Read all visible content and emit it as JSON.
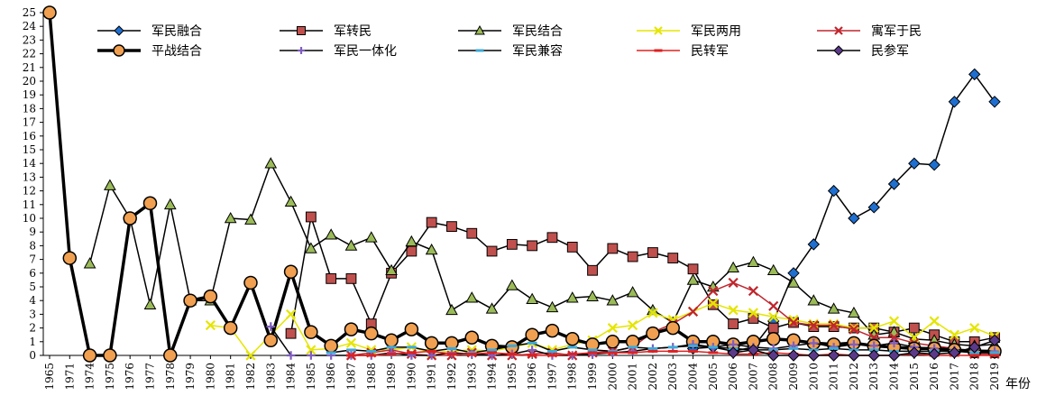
{
  "chart_data": {
    "type": "line",
    "xlabel": "年份",
    "ylabel": "",
    "ylim": [
      0,
      25
    ],
    "grid": false,
    "legend_position": "top",
    "categories": [
      "1965",
      "1971",
      "1974",
      "1975",
      "1976",
      "1977",
      "1978",
      "1979",
      "1980",
      "1981",
      "1982",
      "1983",
      "1984",
      "1985",
      "1986",
      "1987",
      "1988",
      "1989",
      "1990",
      "1991",
      "1992",
      "1993",
      "1994",
      "1995",
      "1996",
      "1997",
      "1998",
      "1999",
      "2000",
      "2001",
      "2002",
      "2003",
      "2004",
      "2005",
      "2006",
      "2007",
      "2008",
      "2009",
      "2010",
      "2011",
      "2012",
      "2013",
      "2014",
      "2015",
      "2016",
      "2017",
      "2018",
      "2019"
    ],
    "y_ticks": [
      0,
      1,
      2,
      3,
      4,
      5,
      6,
      7,
      8,
      9,
      10,
      11,
      12,
      13,
      14,
      15,
      16,
      17,
      18,
      19,
      20,
      21,
      22,
      23,
      24,
      25
    ],
    "series": [
      {
        "name": "军民融合",
        "color": "#1f6fd1",
        "marker": "diamond",
        "stroke": "#000000",
        "width": 1.5,
        "values": [
          null,
          null,
          null,
          null,
          null,
          null,
          null,
          null,
          null,
          null,
          null,
          null,
          null,
          null,
          null,
          null,
          null,
          null,
          null,
          null,
          null,
          null,
          null,
          null,
          null,
          null,
          null,
          null,
          null,
          null,
          null,
          null,
          0.5,
          0.6,
          0.3,
          0.6,
          2.5,
          6,
          8.1,
          12,
          10,
          10.8,
          12.5,
          14,
          13.9,
          18.5,
          20.5,
          18.5
        ]
      },
      {
        "name": "军转民",
        "color": "#c0504d",
        "marker": "square",
        "stroke": "#000000",
        "width": 1.5,
        "values": [
          null,
          null,
          null,
          null,
          null,
          null,
          null,
          null,
          null,
          null,
          null,
          null,
          1.6,
          10.1,
          5.6,
          5.6,
          2.3,
          6,
          7.6,
          9.7,
          9.4,
          8.9,
          7.6,
          8.1,
          8,
          8.6,
          7.9,
          6.2,
          7.8,
          7.2,
          7.5,
          7.1,
          6.3,
          3.7,
          2.3,
          2.7,
          2,
          2.4,
          2.1,
          2.1,
          2,
          2,
          1.7,
          2,
          1.5,
          1,
          1,
          1.3
        ]
      },
      {
        "name": "军民结合",
        "color": "#9bbb59",
        "marker": "triangle",
        "stroke": "#000000",
        "width": 1.5,
        "values": [
          null,
          null,
          6.7,
          12.4,
          10,
          3.7,
          11,
          4,
          4,
          10,
          9.9,
          14,
          11.2,
          7.8,
          8.8,
          8,
          8.6,
          6.2,
          8.3,
          7.7,
          3.3,
          4.2,
          3.4,
          5.1,
          4.1,
          3.5,
          4.2,
          4.3,
          4,
          4.6,
          3.3,
          2.4,
          5.5,
          5,
          6.4,
          6.8,
          6.2,
          5.3,
          4,
          3.4,
          3.1,
          1.5,
          1.7,
          1.2,
          1.1,
          0.8,
          0.7,
          0.8
        ]
      },
      {
        "name": "军民两用",
        "color": "#e5e500",
        "marker": "x",
        "stroke": "#e5e500",
        "width": 1.5,
        "values": [
          null,
          null,
          null,
          null,
          null,
          null,
          null,
          null,
          2.2,
          2,
          0,
          1.5,
          3,
          0.4,
          0.5,
          0.9,
          0.4,
          0.4,
          0.6,
          0.2,
          0.3,
          0.4,
          0.3,
          0.6,
          0.9,
          0.4,
          0.8,
          1.1,
          2,
          2.2,
          3.1,
          2.6,
          3.2,
          3.8,
          3.3,
          3.1,
          2.8,
          2.6,
          2.3,
          2.3,
          2,
          2,
          2.5,
          1.3,
          2.5,
          1.5,
          2,
          1.4
        ]
      },
      {
        "name": "寓军于民",
        "color": "#c0262e",
        "marker": "x",
        "stroke": "#c0262e",
        "width": 1.5,
        "values": [
          null,
          null,
          null,
          null,
          null,
          null,
          null,
          null,
          null,
          null,
          null,
          null,
          null,
          null,
          null,
          0,
          0.2,
          0.4,
          0.1,
          0,
          0,
          0.2,
          0,
          0,
          0.1,
          0.2,
          0,
          0.2,
          0.3,
          0.6,
          1.7,
          2.3,
          3.2,
          4.7,
          5.3,
          4.7,
          3.6,
          2.4,
          2.2,
          2.2,
          1.9,
          1.3,
          1.3,
          0.9,
          0.7,
          0.5,
          0.1,
          0.1
        ]
      },
      {
        "name": "平战结合",
        "color": "#f0a050",
        "marker": "circle",
        "stroke": "#000000",
        "width": 3.5,
        "values": [
          25,
          7.1,
          0,
          0,
          10,
          11.1,
          0,
          4,
          4.3,
          2,
          5.3,
          1.1,
          6.1,
          1.7,
          0.7,
          1.9,
          1.6,
          1.1,
          1.9,
          0.9,
          0.9,
          1.3,
          0.7,
          0.6,
          1.5,
          1.8,
          1.2,
          0.8,
          1,
          1,
          1.6,
          2,
          1,
          1,
          0.8,
          1,
          1.2,
          1.1,
          0.9,
          0.8,
          0.9,
          0.7,
          0.6,
          0.5,
          0.5,
          0.4,
          0.3,
          0.3
        ]
      },
      {
        "name": "军民一体化",
        "color": "#7f5fbf",
        "marker": "plus",
        "stroke": "#000000",
        "width": 1.5,
        "values": [
          null,
          null,
          null,
          null,
          null,
          null,
          null,
          null,
          null,
          null,
          null,
          2.1,
          0,
          0,
          0,
          0,
          0,
          0.2,
          0,
          0,
          0.2,
          0.1,
          0,
          0.1,
          0.4,
          0,
          0,
          0.1,
          0.2,
          0.3,
          0.5,
          0.6,
          0.8,
          0.6,
          0.8,
          0.6,
          0.5,
          0.7,
          0.9,
          0.6,
          0.8,
          0.7,
          0.9,
          0.6,
          0.5,
          0.4,
          0.4,
          0.3
        ]
      },
      {
        "name": "军民兼容",
        "color": "#3fa9d8",
        "marker": "dash",
        "stroke": "#000000",
        "width": 1.5,
        "values": [
          null,
          null,
          null,
          null,
          null,
          null,
          null,
          null,
          null,
          null,
          null,
          null,
          null,
          null,
          0.2,
          0.4,
          0.3,
          0.6,
          0.6,
          0.3,
          0.5,
          0.2,
          0.4,
          0.7,
          0.9,
          0.3,
          0.6,
          0.4,
          0.3,
          0.6,
          0.5,
          0.6,
          0.7,
          0.6,
          0.5,
          0.4,
          0.4,
          0.5,
          0.4,
          0.5,
          0.4,
          0.4,
          0.3,
          0.3,
          0.3,
          0.3,
          0.2,
          0.2
        ]
      },
      {
        "name": "民转军",
        "color": "#e02020",
        "marker": "dash",
        "stroke": "#e02020",
        "width": 1.5,
        "values": [
          null,
          null,
          null,
          null,
          null,
          null,
          null,
          null,
          null,
          null,
          null,
          null,
          null,
          null,
          null,
          0,
          0,
          0.1,
          0.2,
          0.3,
          0.1,
          0.1,
          0.2,
          0.1,
          0,
          0,
          0.1,
          0.2,
          0.2,
          0.2,
          0.3,
          0.3,
          0.3,
          0.2,
          0.1,
          0.1,
          0.2,
          0.1,
          0,
          0.1,
          0,
          0,
          0,
          0.1,
          0,
          0,
          0,
          0
        ]
      },
      {
        "name": "民参军",
        "color": "#5b3a8a",
        "marker": "diamond",
        "stroke": "#000000",
        "width": 1.5,
        "values": [
          null,
          null,
          null,
          null,
          null,
          null,
          null,
          null,
          null,
          null,
          null,
          null,
          null,
          null,
          null,
          null,
          null,
          null,
          null,
          null,
          null,
          null,
          null,
          null,
          null,
          null,
          null,
          null,
          null,
          null,
          null,
          null,
          null,
          null,
          0.2,
          0.4,
          0,
          0,
          0,
          0,
          0,
          0,
          0,
          0.2,
          0.1,
          0.2,
          0.6,
          1.1
        ]
      }
    ]
  }
}
